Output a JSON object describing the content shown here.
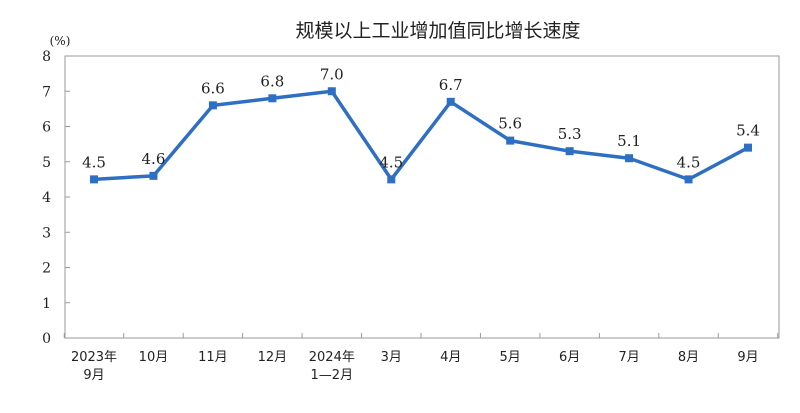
{
  "chart_data": {
    "type": "line",
    "title": "规模以上工业增加值同比增长速度",
    "unit_label": "(%)",
    "categories": [
      [
        "2023年",
        "9月"
      ],
      [
        "10月"
      ],
      [
        "11月"
      ],
      [
        "12月"
      ],
      [
        "2024年",
        "1—2月"
      ],
      [
        "3月"
      ],
      [
        "4月"
      ],
      [
        "5月"
      ],
      [
        "6月"
      ],
      [
        "7月"
      ],
      [
        "8月"
      ],
      [
        "9月"
      ]
    ],
    "series": [
      {
        "values": [
          4.5,
          4.6,
          6.6,
          6.8,
          7.0,
          4.5,
          6.7,
          5.6,
          5.3,
          5.1,
          4.5,
          5.4
        ],
        "labels": [
          "4.5",
          "4.6",
          "6.6",
          "6.8",
          "7.0",
          "4.5",
          "6.7",
          "5.6",
          "5.3",
          "5.1",
          "4.5",
          "5.4"
        ],
        "color": "#2e6fc3"
      }
    ],
    "ylim": [
      0,
      8
    ],
    "yticks": [
      "0",
      "1",
      "2",
      "3",
      "4",
      "5",
      "6",
      "7",
      "8"
    ],
    "grid": false,
    "legend": "none"
  }
}
